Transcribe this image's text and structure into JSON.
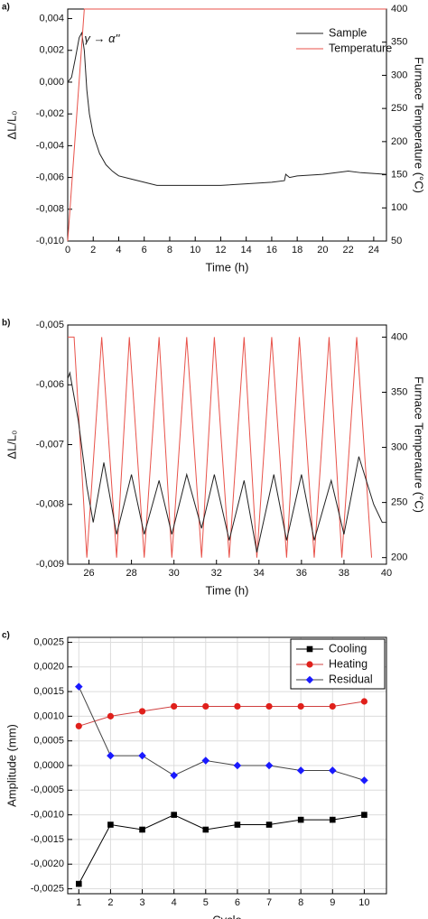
{
  "chart_data": [
    {
      "type": "line",
      "panel_label": "a)",
      "xlabel": "Time (h)",
      "ylabel": "ΔL/L₀",
      "y2label": "Furnace Temperature (°C)",
      "xlim": [
        0,
        25
      ],
      "xticks": [
        0,
        2,
        4,
        6,
        8,
        10,
        12,
        14,
        16,
        18,
        20,
        22,
        24
      ],
      "ylim": [
        -0.01,
        0.0046
      ],
      "yticks": [
        {
          "value": -0.01,
          "label": "-0,010"
        },
        {
          "value": -0.008,
          "label": "-0,008"
        },
        {
          "value": -0.006,
          "label": "-0,006"
        },
        {
          "value": -0.004,
          "label": "-0,004"
        },
        {
          "value": -0.002,
          "label": "-0,002"
        },
        {
          "value": 0,
          "label": "0,000"
        },
        {
          "value": 0.002,
          "label": "0,002"
        },
        {
          "value": 0.004,
          "label": "0,004"
        }
      ],
      "y2lim": [
        50,
        400
      ],
      "y2ticks": [
        50,
        100,
        150,
        200,
        250,
        300,
        350,
        400
      ],
      "legend": "upper right",
      "grid": false,
      "annotations": [
        {
          "text": "γ → α''",
          "x": 1.3,
          "y": 0.0027
        }
      ],
      "series": [
        {
          "name": "Sample",
          "color": "#222222",
          "x": [
            0,
            0.3,
            0.6,
            0.9,
            1.1,
            1.3,
            1.5,
            1.7,
            2.0,
            2.5,
            3.0,
            3.5,
            4.0,
            5,
            6,
            7,
            8,
            10,
            12,
            14,
            16,
            17,
            17.1,
            17.4,
            18,
            20,
            22,
            23,
            25
          ],
          "values": [
            0,
            0.0003,
            0.0015,
            0.0028,
            0.0031,
            0.002,
            -0.0005,
            -0.002,
            -0.0033,
            -0.0045,
            -0.0052,
            -0.0056,
            -0.0059,
            -0.0061,
            -0.0063,
            -0.0065,
            -0.0065,
            -0.0065,
            -0.0065,
            -0.0064,
            -0.0063,
            -0.0062,
            -0.0058,
            -0.006,
            -0.0059,
            -0.0058,
            -0.0056,
            -0.0057,
            -0.0058
          ]
        },
        {
          "name": "Temperature",
          "color": "#e8524a",
          "axis": "y2",
          "x": [
            0,
            1.3,
            25
          ],
          "values": [
            50,
            400,
            400
          ]
        }
      ]
    },
    {
      "type": "line",
      "panel_label": "b)",
      "xlabel": "Time (h)",
      "ylabel": "ΔL/L₀",
      "y2label": "Furnace Temperature (°C)",
      "xlim": [
        25,
        40
      ],
      "xticks": [
        26,
        28,
        30,
        32,
        34,
        36,
        38,
        40
      ],
      "ylim": [
        -0.009,
        -0.005
      ],
      "yticks": [
        {
          "value": -0.009,
          "label": "-0,009"
        },
        {
          "value": -0.008,
          "label": "-0,008"
        },
        {
          "value": -0.007,
          "label": "-0,007"
        },
        {
          "value": -0.006,
          "label": "-0,006"
        },
        {
          "value": -0.005,
          "label": "-0,005"
        }
      ],
      "y2lim": [
        194,
        411
      ],
      "y2ticks": [
        200,
        250,
        300,
        350,
        400
      ],
      "grid": false,
      "series": [
        {
          "color": "#e8524a",
          "axis": "y2",
          "x": [
            25,
            25.3,
            25.9,
            26.6,
            27.3,
            27.9,
            28.6,
            29.3,
            29.9,
            30.6,
            31.3,
            31.9,
            32.6,
            33.3,
            33.9,
            34.6,
            35.3,
            35.9,
            36.6,
            37.3,
            37.9,
            38.6,
            39.3
          ],
          "values": [
            400,
            400,
            200,
            400,
            200,
            400,
            200,
            400,
            200,
            400,
            200,
            400,
            200,
            400,
            200,
            400,
            200,
            400,
            200,
            400,
            200,
            400,
            200
          ]
        },
        {
          "color": "#222222",
          "x": [
            25,
            25.1,
            25.5,
            25.9,
            26.2,
            26.7,
            27.3,
            28.0,
            28.6,
            29.3,
            29.9,
            30.6,
            31.3,
            31.9,
            32.6,
            33.3,
            33.9,
            34.7,
            35.3,
            36.0,
            36.6,
            37.4,
            38.0,
            38.7,
            39.4,
            39.8,
            40
          ],
          "values": [
            -0.0059,
            -0.0058,
            -0.0066,
            -0.0077,
            -0.0083,
            -0.0073,
            -0.0085,
            -0.0075,
            -0.0085,
            -0.0076,
            -0.0085,
            -0.0075,
            -0.0084,
            -0.0075,
            -0.0086,
            -0.0076,
            -0.0088,
            -0.0075,
            -0.0086,
            -0.0075,
            -0.0086,
            -0.0076,
            -0.0085,
            -0.0072,
            -0.008,
            -0.0083,
            -0.0083
          ]
        }
      ]
    },
    {
      "type": "line",
      "panel_label": "c)",
      "xlabel": "Cycle",
      "ylabel": "Amplitude (mm)",
      "xlim": [
        0.65,
        10.7
      ],
      "xticks": [
        1,
        2,
        3,
        4,
        5,
        6,
        7,
        8,
        9,
        10
      ],
      "ylim": [
        -0.0026,
        0.0026
      ],
      "yticks": [
        {
          "value": -0.0025,
          "label": "-0,0025"
        },
        {
          "value": -0.002,
          "label": "-0,0020"
        },
        {
          "value": -0.0015,
          "label": "-0,0015"
        },
        {
          "value": -0.001,
          "label": "-0,0010"
        },
        {
          "value": -0.0005,
          "label": "-0,0005"
        },
        {
          "value": 0,
          "label": "0,0000"
        },
        {
          "value": 0.0005,
          "label": "0,0005"
        },
        {
          "value": 0.001,
          "label": "0,0010"
        },
        {
          "value": 0.0015,
          "label": "0,0015"
        },
        {
          "value": 0.002,
          "label": "0,0020"
        },
        {
          "value": 0.0025,
          "label": "0,0025"
        }
      ],
      "grid": true,
      "legend": "upper right",
      "legend_frame": true,
      "x": [
        1,
        2,
        3,
        4,
        5,
        6,
        7,
        8,
        9,
        10
      ],
      "series": [
        {
          "name": "Cooling",
          "color": "#000000",
          "line_color": "#000000",
          "marker": "square",
          "values": [
            -0.0024,
            -0.0012,
            -0.0013,
            -0.001,
            -0.0013,
            -0.0012,
            -0.0012,
            -0.0011,
            -0.0011,
            -0.001
          ]
        },
        {
          "name": "Heating",
          "color": "#e0201b",
          "line_color": "#d04040",
          "marker": "circle",
          "values": [
            0.0008,
            0.001,
            0.0011,
            0.0012,
            0.0012,
            0.0012,
            0.0012,
            0.0012,
            0.0012,
            0.0013
          ]
        },
        {
          "name": "Residual",
          "color": "#1a1aff",
          "line_color": "#444444",
          "marker": "diamond",
          "values": [
            0.0016,
            0.0002,
            0.0002,
            -0.0002,
            0.0001,
            0,
            0,
            -0.0001,
            -0.0001,
            -0.0003
          ]
        }
      ]
    }
  ]
}
